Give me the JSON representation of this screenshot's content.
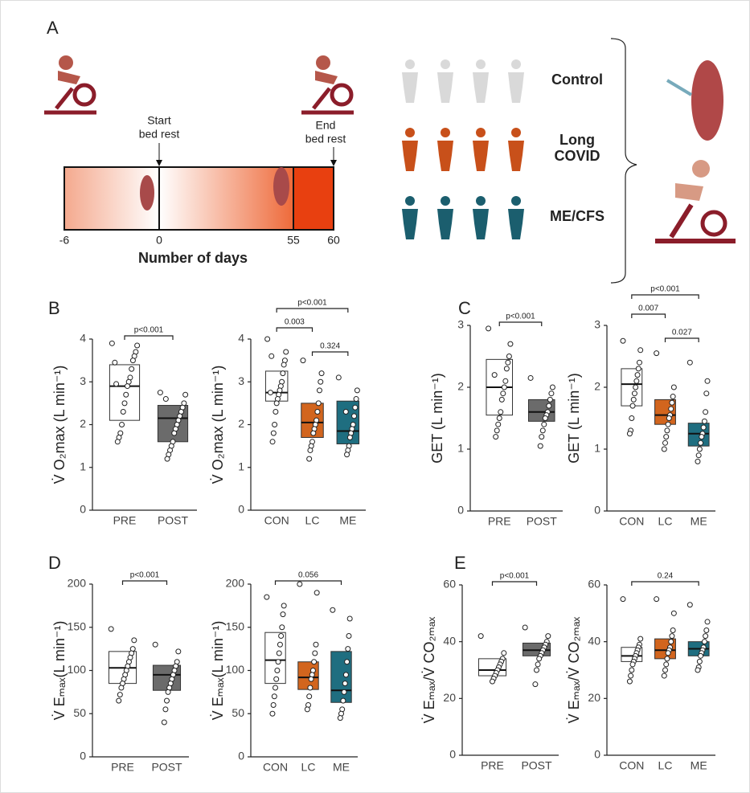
{
  "panel_a": {
    "label": "A",
    "start_label": [
      "Start",
      "bed rest"
    ],
    "end_label": [
      "End",
      "bed rest"
    ],
    "day_ticks": [
      -6,
      0,
      55,
      60
    ],
    "axis_title": "Number of days",
    "groups": [
      {
        "name": "Control",
        "color": "#d9d9d9"
      },
      {
        "name": "Long\nCOVID",
        "color": "#c8501a"
      },
      {
        "name": "ME/CFS",
        "color": "#1b5e6e"
      }
    ]
  },
  "chart_data": [
    {
      "type": "box",
      "panel": "B",
      "ylabel": "V̇ O₂max (L min⁻¹)",
      "categories": [
        "PRE",
        "POST"
      ],
      "colors": [
        "#ffffff",
        "#6b6b6b"
      ],
      "ylim": [
        0,
        4
      ],
      "yticks": [
        0,
        1,
        2,
        3,
        4
      ],
      "boxes": [
        {
          "q1": 2.1,
          "median": 2.9,
          "q3": 3.4
        },
        {
          "q1": 1.6,
          "median": 2.15,
          "q3": 2.45
        }
      ],
      "points": [
        [
          3.9,
          3.85,
          3.7,
          3.6,
          3.5,
          3.3,
          3.1,
          3.0,
          2.9,
          2.7,
          2.5,
          2.3,
          2.0,
          1.8,
          1.7,
          1.6,
          2.95,
          3.45
        ],
        [
          2.75,
          2.7,
          2.5,
          2.4,
          2.3,
          2.2,
          2.1,
          2.0,
          1.9,
          1.8,
          1.6,
          1.5,
          1.4,
          1.3,
          1.2,
          2.6
        ]
      ],
      "annotations": [
        {
          "text": "p<0.001",
          "from": 0,
          "to": 1
        }
      ]
    },
    {
      "type": "box",
      "ylabel": "V̇ O₂max (L min⁻¹)",
      "categories": [
        "CON",
        "LC",
        "ME"
      ],
      "colors": [
        "#ffffff",
        "#d2651e",
        "#1f6e80"
      ],
      "ylim": [
        0,
        4
      ],
      "yticks": [
        0,
        1,
        2,
        3,
        4
      ],
      "boxes": [
        {
          "q1": 2.55,
          "median": 2.75,
          "q3": 3.25
        },
        {
          "q1": 1.7,
          "median": 2.05,
          "q3": 2.5
        },
        {
          "q1": 1.55,
          "median": 1.85,
          "q3": 2.55
        }
      ],
      "points": [
        [
          4.0,
          3.7,
          3.5,
          3.4,
          3.2,
          3.0,
          2.9,
          2.8,
          2.7,
          2.6,
          2.5,
          2.3,
          2.0,
          1.8,
          1.6,
          3.6,
          2.75
        ],
        [
          3.5,
          3.2,
          3.0,
          2.8,
          2.5,
          2.3,
          2.1,
          2.0,
          1.9,
          1.8,
          1.6,
          1.5,
          1.4,
          1.2
        ],
        [
          3.1,
          2.8,
          2.6,
          2.4,
          2.2,
          2.0,
          1.9,
          1.8,
          1.7,
          1.5,
          1.4,
          1.3,
          2.3
        ]
      ],
      "annotations": [
        {
          "text": "p<0.001",
          "from": 0,
          "to": 2
        },
        {
          "text": "0.003",
          "from": 0,
          "to": 1
        },
        {
          "text": "0.324",
          "from": 1,
          "to": 2
        }
      ]
    },
    {
      "type": "box",
      "panel": "C",
      "ylabel": "GET (L min⁻¹)",
      "categories": [
        "PRE",
        "POST"
      ],
      "colors": [
        "#ffffff",
        "#6b6b6b"
      ],
      "ylim": [
        0,
        3
      ],
      "yticks": [
        0,
        1,
        2,
        3
      ],
      "boxes": [
        {
          "q1": 1.55,
          "median": 2.0,
          "q3": 2.45
        },
        {
          "q1": 1.45,
          "median": 1.6,
          "q3": 1.8
        }
      ],
      "points": [
        [
          2.95,
          2.7,
          2.5,
          2.4,
          2.3,
          2.1,
          2.0,
          1.9,
          1.8,
          1.6,
          1.5,
          1.4,
          1.3,
          1.2,
          2.2
        ],
        [
          2.15,
          2.0,
          1.9,
          1.8,
          1.7,
          1.6,
          1.55,
          1.5,
          1.4,
          1.3,
          1.2,
          1.05
        ]
      ],
      "annotations": [
        {
          "text": "p<0.001",
          "from": 0,
          "to": 1
        }
      ]
    },
    {
      "type": "box",
      "ylabel": "GET (L min⁻¹)",
      "categories": [
        "CON",
        "LC",
        "ME"
      ],
      "colors": [
        "#ffffff",
        "#d2651e",
        "#1f6e80"
      ],
      "ylim": [
        0,
        3
      ],
      "yticks": [
        0,
        1,
        2,
        3
      ],
      "boxes": [
        {
          "q1": 1.7,
          "median": 2.05,
          "q3": 2.3
        },
        {
          "q1": 1.4,
          "median": 1.55,
          "q3": 1.8
        },
        {
          "q1": 1.05,
          "median": 1.25,
          "q3": 1.42
        }
      ],
      "points": [
        [
          2.75,
          2.6,
          2.4,
          2.3,
          2.2,
          2.1,
          2.0,
          1.9,
          1.8,
          1.7,
          1.5,
          1.3,
          1.25
        ],
        [
          2.55,
          2.0,
          1.85,
          1.75,
          1.65,
          1.55,
          1.5,
          1.4,
          1.3,
          1.2,
          1.1,
          1.0
        ],
        [
          2.4,
          2.1,
          1.9,
          1.6,
          1.45,
          1.35,
          1.25,
          1.2,
          1.1,
          1.0,
          0.9,
          0.8
        ]
      ],
      "annotations": [
        {
          "text": "p<0.001",
          "from": 0,
          "to": 2
        },
        {
          "text": "0.007",
          "from": 0,
          "to": 1
        },
        {
          "text": "0.027",
          "from": 1,
          "to": 2
        }
      ]
    },
    {
      "type": "box",
      "panel": "D",
      "ylabel": "V̇ Eₘₐₓ(L min⁻¹)",
      "categories": [
        "PRE",
        "POST"
      ],
      "colors": [
        "#ffffff",
        "#6b6b6b"
      ],
      "ylim": [
        0,
        200
      ],
      "yticks": [
        0,
        50,
        100,
        150,
        200
      ],
      "boxes": [
        {
          "q1": 85,
          "median": 103,
          "q3": 122
        },
        {
          "q1": 77,
          "median": 95,
          "q3": 106
        }
      ],
      "points": [
        [
          148,
          135,
          125,
          120,
          115,
          110,
          105,
          100,
          95,
          90,
          85,
          80,
          72,
          65
        ],
        [
          130,
          122,
          110,
          105,
          100,
          95,
          90,
          85,
          80,
          75,
          65,
          55,
          40
        ]
      ],
      "annotations": [
        {
          "text": "p<0.001",
          "from": 0,
          "to": 1
        }
      ]
    },
    {
      "type": "box",
      "ylabel": "V̇ Eₘₐₓ(L min⁻¹)",
      "categories": [
        "CON",
        "LC",
        "ME"
      ],
      "colors": [
        "#ffffff",
        "#d2651e",
        "#1f6e80"
      ],
      "ylim": [
        0,
        200
      ],
      "yticks": [
        0,
        50,
        100,
        150,
        200
      ],
      "boxes": [
        {
          "q1": 85,
          "median": 112,
          "q3": 144
        },
        {
          "q1": 78,
          "median": 92,
          "q3": 110
        },
        {
          "q1": 63,
          "median": 77,
          "q3": 122
        }
      ],
      "points": [
        [
          185,
          175,
          165,
          150,
          140,
          130,
          120,
          110,
          100,
          90,
          80,
          70,
          60,
          50
        ],
        [
          200,
          190,
          130,
          120,
          110,
          100,
          95,
          90,
          80,
          70,
          60,
          55
        ],
        [
          170,
          160,
          140,
          125,
          110,
          95,
          85,
          75,
          65,
          55,
          50,
          45
        ]
      ],
      "annotations": [
        {
          "text": "0.056",
          "from": 0,
          "to": 2
        }
      ]
    },
    {
      "type": "box",
      "panel": "E",
      "ylabel": "V̇ Eₘₐₓ/V̇ CO₂ₘₐₓ",
      "categories": [
        "PRE",
        "POST"
      ],
      "colors": [
        "#ffffff",
        "#6b6b6b"
      ],
      "ylim": [
        0,
        60
      ],
      "yticks": [
        0,
        20,
        40,
        60
      ],
      "boxes": [
        {
          "q1": 28,
          "median": 30,
          "q3": 34
        },
        {
          "q1": 35,
          "median": 37,
          "q3": 39.5
        }
      ],
      "points": [
        [
          42,
          36,
          34,
          33,
          32,
          31,
          30,
          29,
          28,
          27,
          26
        ],
        [
          45,
          42,
          40,
          39,
          38,
          37,
          36,
          35,
          34,
          32,
          30,
          25
        ]
      ],
      "annotations": [
        {
          "text": "p<0.001",
          "from": 0,
          "to": 1
        }
      ]
    },
    {
      "type": "box",
      "ylabel": "V̇ Eₘₐₓ/V̇ CO₂ₘₐₓ",
      "categories": [
        "CON",
        "LC",
        "ME"
      ],
      "colors": [
        "#ffffff",
        "#d2651e",
        "#1f6e80"
      ],
      "ylim": [
        0,
        60
      ],
      "yticks": [
        0,
        20,
        40,
        60
      ],
      "boxes": [
        {
          "q1": 33,
          "median": 35,
          "q3": 38
        },
        {
          "q1": 34,
          "median": 37,
          "q3": 41
        },
        {
          "q1": 35,
          "median": 37.5,
          "q3": 40
        }
      ],
      "points": [
        [
          55,
          41,
          39,
          38,
          37,
          36,
          35,
          34,
          33,
          32,
          30,
          28,
          26
        ],
        [
          55,
          50,
          44,
          42,
          40,
          38,
          37,
          36,
          34,
          32,
          30,
          28
        ],
        [
          53,
          47,
          44,
          42,
          40,
          38,
          37,
          36,
          35,
          33,
          31,
          30
        ]
      ],
      "annotations": [
        {
          "text": "0.24",
          "from": 0,
          "to": 2
        }
      ]
    }
  ]
}
